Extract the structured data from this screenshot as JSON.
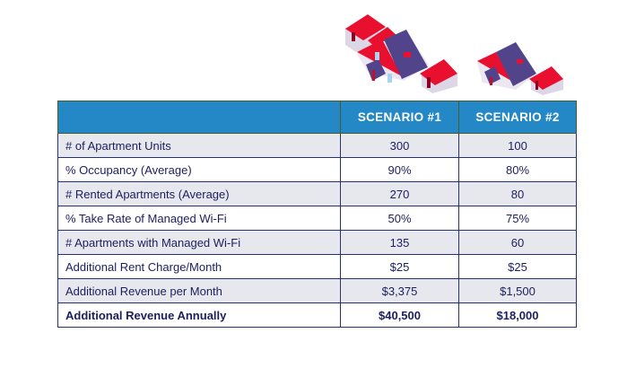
{
  "headers": [
    "",
    "SCENARIO #1",
    "SCENARIO #2"
  ],
  "rows": [
    [
      "# of Apartment Units",
      "300",
      "100"
    ],
    [
      "% Occupancy (Average)",
      "90%",
      "80%"
    ],
    [
      "# Rented Apartments (Average)",
      "270",
      "80"
    ],
    [
      "% Take Rate of Managed Wi-Fi",
      "50%",
      "75%"
    ],
    [
      "# Apartments with Managed Wi-Fi",
      "135",
      "60"
    ],
    [
      "Additional Rent Charge/Month",
      "$25",
      "$25"
    ],
    [
      "Additional Revenue per Month",
      "$3,375",
      "$1,500"
    ],
    [
      "Additional Revenue Annually",
      "$40,500",
      "$18,000"
    ]
  ],
  "colors": {
    "header": "#2488c6",
    "text": "#1c1f5c",
    "roof_red": "#e8102e",
    "roof_purple": "#52448a"
  }
}
